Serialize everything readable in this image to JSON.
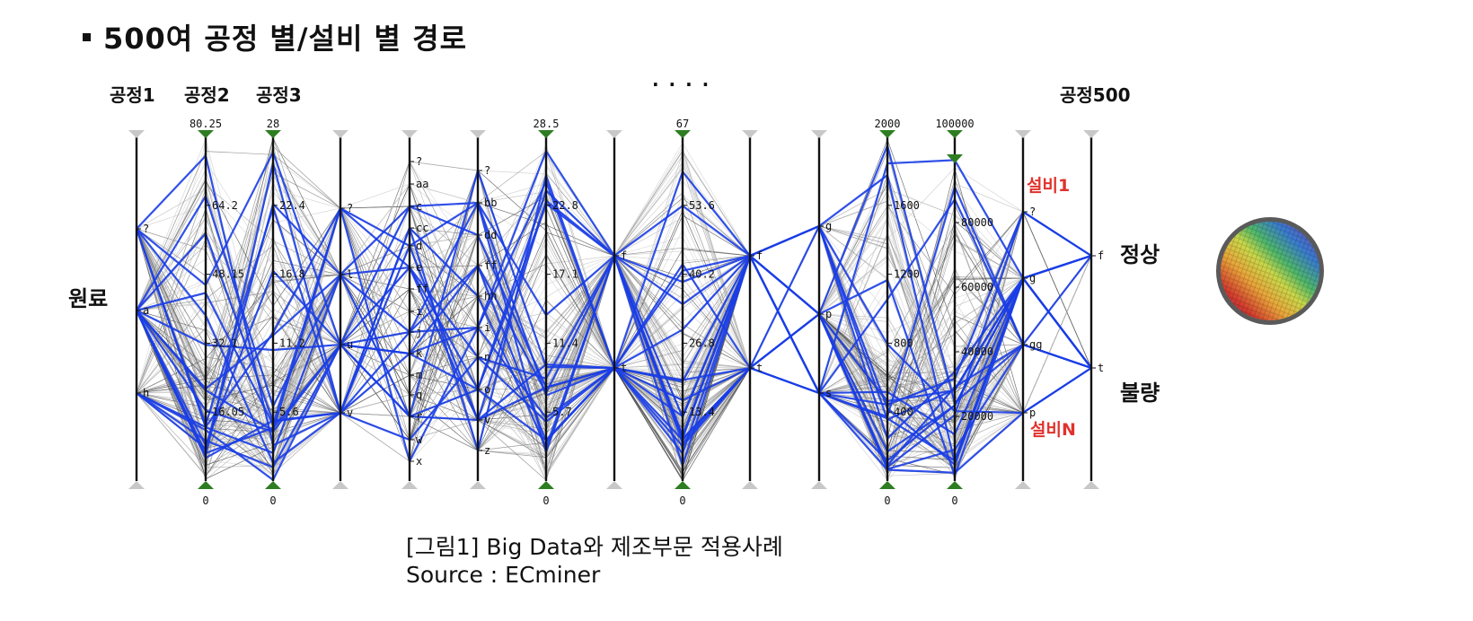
{
  "heading": "500여 공정 별/설비 별 경로",
  "process_labels": {
    "p1": "공정1",
    "p2": "공정2",
    "p3": "공정3",
    "ellipsis": "· · · ·",
    "p500": "공정500"
  },
  "side_labels": {
    "input": "원료",
    "normal": "정상",
    "defect": "불량"
  },
  "equipment_labels": {
    "first": "설비1",
    "last": "설비N"
  },
  "caption": {
    "line1": "[그림1] Big Data와 제조부문 적용사례",
    "line2": "Source : ECminer"
  },
  "colors": {
    "highlight": "#1a3de6",
    "axis_marker_numeric": "#2e7d22",
    "axis_marker_categorical": "#c8c8c8",
    "background_lines": "#a8a8a8",
    "equipment_text": "#e0322d"
  },
  "chart_data": {
    "type": "parallel_coordinates",
    "axes": [
      {
        "kind": "categorical",
        "categories": [
          "?",
          "a",
          "h"
        ]
      },
      {
        "kind": "numeric",
        "min": 0,
        "max": 80.25,
        "ticks": [
          0,
          16.05,
          32.1,
          48.15,
          64.2,
          80.25
        ],
        "tick_labels": [
          "0",
          "16.05",
          "32.1",
          "48.15",
          "64.2",
          "80.25"
        ]
      },
      {
        "kind": "numeric",
        "min": 0,
        "max": 28,
        "ticks": [
          0,
          5.6,
          11.2,
          16.8,
          22.4,
          28
        ],
        "tick_labels": [
          "0",
          "5.6",
          "11.2",
          "16.8",
          "22.4",
          "28"
        ]
      },
      {
        "kind": "categorical",
        "categories": [
          "?",
          "l",
          "u",
          "v"
        ]
      },
      {
        "kind": "categorical",
        "categories": [
          "?",
          "aa",
          "c",
          "cc",
          "d",
          "e",
          "ff",
          "i",
          "j",
          "k",
          "m",
          "q",
          "r",
          "w",
          "x"
        ]
      },
      {
        "kind": "categorical",
        "categories": [
          "?",
          "bb",
          "dd",
          "ff",
          "hh",
          "i",
          "n",
          "o",
          "v",
          "z"
        ]
      },
      {
        "kind": "numeric",
        "min": 0,
        "max": 28.5,
        "ticks": [
          0,
          5.7,
          11.4,
          17.1,
          22.8,
          28.5
        ],
        "tick_labels": [
          "0",
          "5.7",
          "11.4",
          "17.1",
          "22.8",
          "28.5"
        ]
      },
      {
        "kind": "categorical",
        "categories": [
          "f",
          "t"
        ]
      },
      {
        "kind": "numeric",
        "min": 0,
        "max": 67,
        "ticks": [
          0,
          13.4,
          26.8,
          40.2,
          53.6,
          67
        ],
        "tick_labels": [
          "0",
          "13.4",
          "26.8",
          "40.2",
          "53.6",
          "67"
        ]
      },
      {
        "kind": "categorical",
        "categories": [
          "f",
          "t"
        ]
      },
      {
        "kind": "categorical",
        "categories": [
          "g",
          "p",
          "s"
        ]
      },
      {
        "kind": "numeric",
        "min": 0,
        "max": 2000,
        "ticks": [
          0,
          400,
          800,
          1200,
          1600,
          2000
        ],
        "tick_labels": [
          "0",
          "400",
          "800",
          "1200",
          "1600",
          "2000"
        ]
      },
      {
        "kind": "numeric",
        "min": 0,
        "max": 100000,
        "ticks": [
          0,
          20000,
          40000,
          60000,
          80000,
          100000
        ],
        "tick_labels": [
          "0",
          "20000",
          "40000",
          "60000",
          "80000",
          "100000"
        ]
      },
      {
        "kind": "categorical",
        "categories": [
          "?",
          "g",
          "gg",
          "p"
        ]
      },
      {
        "kind": "categorical",
        "categories": [
          "f",
          "t"
        ]
      }
    ]
  }
}
